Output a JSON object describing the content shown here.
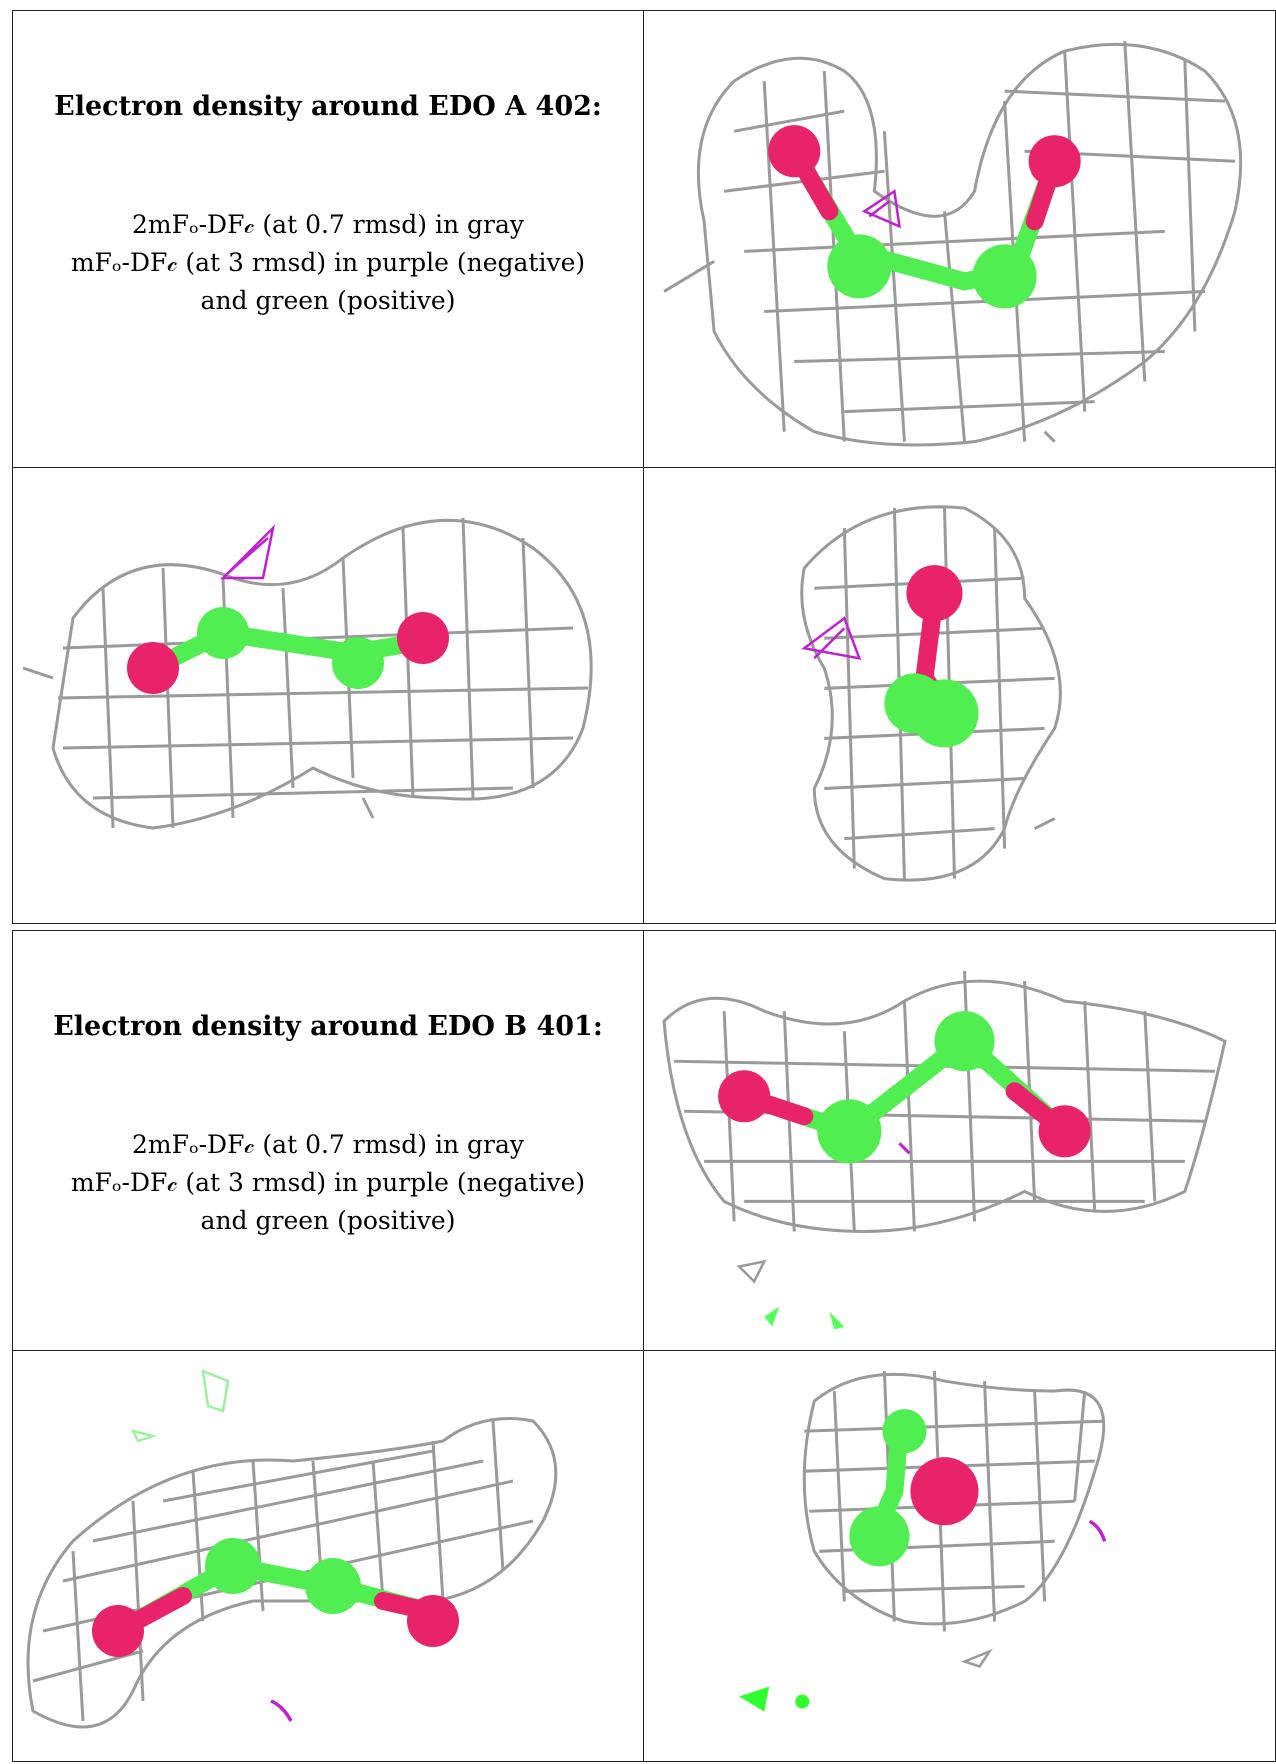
{
  "panel1": {
    "title": "Electron density around EDO A 402:",
    "legend_line1": "2mFₒ-DF𝒸 (at 0.7 rmsd) in gray",
    "legend_line2": "mFₒ-DF𝒸 (at 3 rmsd) in purple (negative)",
    "legend_line3": "and green (positive)"
  },
  "panel2": {
    "title": "Electron density around EDO B 401:",
    "legend_line1": "2mFₒ-DF𝒸 (at 0.7 rmsd) in gray",
    "legend_line2": "mFₒ-DF𝒸 (at 3 rmsd) in purple (negative)",
    "legend_line3": "and green (positive)"
  },
  "colors": {
    "mesh_gray": "#9a9a9a",
    "oxygen": "#e8236a",
    "carbon": "#50ee50",
    "negative": "#c020d0",
    "positive": "#30ff30"
  }
}
